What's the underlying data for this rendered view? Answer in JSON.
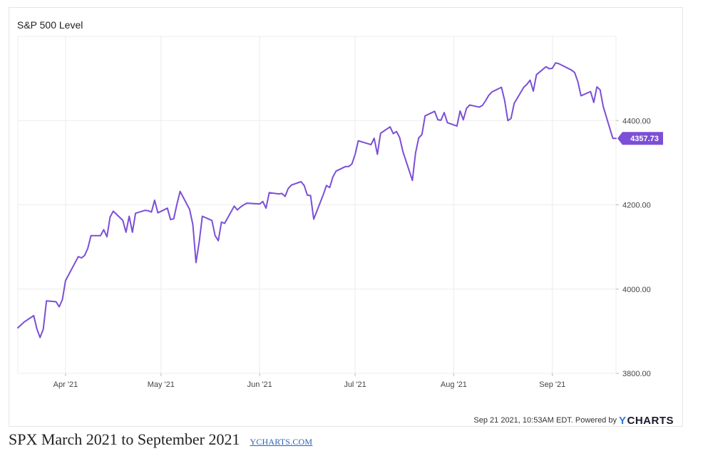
{
  "chart_data": {
    "type": "line",
    "title": "S&P 500 Level",
    "xlabel": "",
    "ylabel": "",
    "ylim": [
      3800,
      4600
    ],
    "yticks": [
      3800,
      4000,
      4200,
      4400
    ],
    "ytick_labels": [
      "3800.00",
      "4000.00",
      "4200.00",
      "4400.00"
    ],
    "xlim": [
      "2021-03-17",
      "2021-09-21"
    ],
    "xticks": [
      "2021-04-01",
      "2021-05-01",
      "2021-06-01",
      "2021-07-01",
      "2021-08-01",
      "2021-09-01"
    ],
    "xtick_labels": [
      "Apr '21",
      "May '21",
      "Jun '21",
      "Jul '21",
      "Aug '21",
      "Sep '21"
    ],
    "grid": true,
    "line_color": "#7b4fd6",
    "last_value_label": "4357.73",
    "series": [
      {
        "values": [
          [
            "2021-03-17",
            3908
          ],
          [
            "2021-03-18",
            3915
          ],
          [
            "2021-03-19",
            3922
          ],
          [
            "2021-03-22",
            3937
          ],
          [
            "2021-03-23",
            3905
          ],
          [
            "2021-03-24",
            3885
          ],
          [
            "2021-03-25",
            3905
          ],
          [
            "2021-03-26",
            3972
          ],
          [
            "2021-03-29",
            3970
          ],
          [
            "2021-03-30",
            3958
          ],
          [
            "2021-03-31",
            3975
          ],
          [
            "2021-04-01",
            4020
          ],
          [
            "2021-04-05",
            4077
          ],
          [
            "2021-04-06",
            4074
          ],
          [
            "2021-04-07",
            4080
          ],
          [
            "2021-04-08",
            4097
          ],
          [
            "2021-04-09",
            4127
          ],
          [
            "2021-04-12",
            4127
          ],
          [
            "2021-04-13",
            4141
          ],
          [
            "2021-04-14",
            4124
          ],
          [
            "2021-04-15",
            4171
          ],
          [
            "2021-04-16",
            4185
          ],
          [
            "2021-04-19",
            4163
          ],
          [
            "2021-04-20",
            4135
          ],
          [
            "2021-04-21",
            4173
          ],
          [
            "2021-04-22",
            4135
          ],
          [
            "2021-04-23",
            4180
          ],
          [
            "2021-04-26",
            4187
          ],
          [
            "2021-04-27",
            4186
          ],
          [
            "2021-04-28",
            4183
          ],
          [
            "2021-04-29",
            4211
          ],
          [
            "2021-04-30",
            4181
          ],
          [
            "2021-05-03",
            4192
          ],
          [
            "2021-05-04",
            4165
          ],
          [
            "2021-05-05",
            4167
          ],
          [
            "2021-05-06",
            4201
          ],
          [
            "2021-05-07",
            4232
          ],
          [
            "2021-05-10",
            4189
          ],
          [
            "2021-05-11",
            4153
          ],
          [
            "2021-05-12",
            4063
          ],
          [
            "2021-05-13",
            4112
          ],
          [
            "2021-05-14",
            4173
          ],
          [
            "2021-05-17",
            4163
          ],
          [
            "2021-05-18",
            4127
          ],
          [
            "2021-05-19",
            4115
          ],
          [
            "2021-05-20",
            4159
          ],
          [
            "2021-05-21",
            4156
          ],
          [
            "2021-05-24",
            4197
          ],
          [
            "2021-05-25",
            4188
          ],
          [
            "2021-05-26",
            4195
          ],
          [
            "2021-05-27",
            4200
          ],
          [
            "2021-05-28",
            4204
          ],
          [
            "2021-06-01",
            4202
          ],
          [
            "2021-06-02",
            4208
          ],
          [
            "2021-06-03",
            4192
          ],
          [
            "2021-06-04",
            4229
          ],
          [
            "2021-06-07",
            4226
          ],
          [
            "2021-06-08",
            4227
          ],
          [
            "2021-06-09",
            4220
          ],
          [
            "2021-06-10",
            4239
          ],
          [
            "2021-06-11",
            4247
          ],
          [
            "2021-06-14",
            4255
          ],
          [
            "2021-06-15",
            4246
          ],
          [
            "2021-06-16",
            4223
          ],
          [
            "2021-06-17",
            4222
          ],
          [
            "2021-06-18",
            4166
          ],
          [
            "2021-06-21",
            4224
          ],
          [
            "2021-06-22",
            4246
          ],
          [
            "2021-06-23",
            4241
          ],
          [
            "2021-06-24",
            4266
          ],
          [
            "2021-06-25",
            4280
          ],
          [
            "2021-06-28",
            4291
          ],
          [
            "2021-06-29",
            4291
          ],
          [
            "2021-06-30",
            4297
          ],
          [
            "2021-07-01",
            4320
          ],
          [
            "2021-07-02",
            4352
          ],
          [
            "2021-07-06",
            4343
          ],
          [
            "2021-07-07",
            4358
          ],
          [
            "2021-07-08",
            4320
          ],
          [
            "2021-07-09",
            4370
          ],
          [
            "2021-07-12",
            4385
          ],
          [
            "2021-07-13",
            4369
          ],
          [
            "2021-07-14",
            4374
          ],
          [
            "2021-07-15",
            4360
          ],
          [
            "2021-07-16",
            4327
          ],
          [
            "2021-07-19",
            4258
          ],
          [
            "2021-07-20",
            4323
          ],
          [
            "2021-07-21",
            4359
          ],
          [
            "2021-07-22",
            4367
          ],
          [
            "2021-07-23",
            4411
          ],
          [
            "2021-07-26",
            4422
          ],
          [
            "2021-07-27",
            4402
          ],
          [
            "2021-07-28",
            4401
          ],
          [
            "2021-07-29",
            4419
          ],
          [
            "2021-07-30",
            4395
          ],
          [
            "2021-08-02",
            4387
          ],
          [
            "2021-08-03",
            4423
          ],
          [
            "2021-08-04",
            4402
          ],
          [
            "2021-08-05",
            4429
          ],
          [
            "2021-08-06",
            4437
          ],
          [
            "2021-08-09",
            4432
          ],
          [
            "2021-08-10",
            4436
          ],
          [
            "2021-08-11",
            4447
          ],
          [
            "2021-08-12",
            4460
          ],
          [
            "2021-08-13",
            4468
          ],
          [
            "2021-08-16",
            4479
          ],
          [
            "2021-08-17",
            4448
          ],
          [
            "2021-08-18",
            4400
          ],
          [
            "2021-08-19",
            4405
          ],
          [
            "2021-08-20",
            4441
          ],
          [
            "2021-08-23",
            4479
          ],
          [
            "2021-08-24",
            4486
          ],
          [
            "2021-08-25",
            4496
          ],
          [
            "2021-08-26",
            4470
          ],
          [
            "2021-08-27",
            4509
          ],
          [
            "2021-08-30",
            4528
          ],
          [
            "2021-08-31",
            4523
          ],
          [
            "2021-09-01",
            4524
          ],
          [
            "2021-09-02",
            4537
          ],
          [
            "2021-09-03",
            4535
          ],
          [
            "2021-09-07",
            4520
          ],
          [
            "2021-09-08",
            4514
          ],
          [
            "2021-09-09",
            4493
          ],
          [
            "2021-09-10",
            4459
          ],
          [
            "2021-09-13",
            4469
          ],
          [
            "2021-09-14",
            4443
          ],
          [
            "2021-09-15",
            4480
          ],
          [
            "2021-09-16",
            4473
          ],
          [
            "2021-09-17",
            4433
          ],
          [
            "2021-09-20",
            4358
          ],
          [
            "2021-09-21",
            4357.73
          ]
        ]
      }
    ]
  },
  "footer": {
    "timestamp": "Sep 21 2021, 10:53AM EDT. Powered by",
    "logo_y": "Y",
    "logo_text": "CHARTS"
  },
  "caption": {
    "text": "SPX March 2021 to September 2021",
    "link": "YCHARTS.COM"
  }
}
